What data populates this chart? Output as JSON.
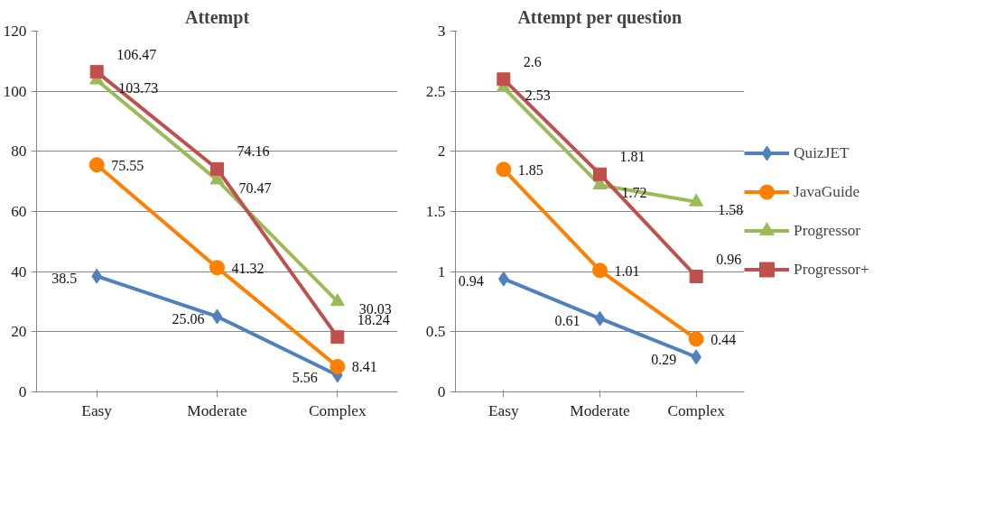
{
  "chart_data": [
    {
      "type": "line",
      "title": "Attempt",
      "categories": [
        "Easy",
        "Moderate",
        "Complex"
      ],
      "ylim": [
        0,
        120
      ],
      "yticks": [
        0,
        20,
        40,
        60,
        80,
        100,
        120
      ],
      "grid": "y",
      "data_labels": true,
      "legend": false,
      "series": [
        {
          "color": "#4f81bd",
          "marker": "diamond",
          "values": [
            38.5,
            25.06,
            5.56
          ]
        },
        {
          "color": "#ff8000",
          "marker": "circle",
          "values": [
            75.55,
            41.32,
            8.41
          ]
        },
        {
          "color": "#9bbb59",
          "marker": "triangle",
          "values": [
            103.73,
            70.47,
            30.03
          ]
        },
        {
          "color": "#c0504d",
          "marker": "square",
          "values": [
            106.47,
            74.16,
            18.24
          ]
        }
      ]
    },
    {
      "type": "line",
      "title": "Attempt per question",
      "categories": [
        "Easy",
        "Moderate",
        "Complex"
      ],
      "ylim": [
        0,
        3
      ],
      "yticks": [
        0,
        0.5,
        1,
        1.5,
        2,
        2.5,
        3
      ],
      "grid": "y",
      "data_labels": true,
      "legend": "right",
      "series": [
        {
          "name": "QuizJET",
          "color": "#4f81bd",
          "marker": "diamond",
          "values": [
            0.94,
            0.61,
            0.29
          ]
        },
        {
          "name": "JavaGuide",
          "color": "#ff8000",
          "marker": "circle",
          "values": [
            1.85,
            1.01,
            0.44
          ]
        },
        {
          "name": "Progressor",
          "color": "#9bbb59",
          "marker": "triangle",
          "values": [
            2.53,
            1.72,
            1.58
          ]
        },
        {
          "name": "Progressor+",
          "color": "#c0504d",
          "marker": "square",
          "values": [
            2.6,
            1.81,
            0.96
          ]
        }
      ]
    }
  ]
}
